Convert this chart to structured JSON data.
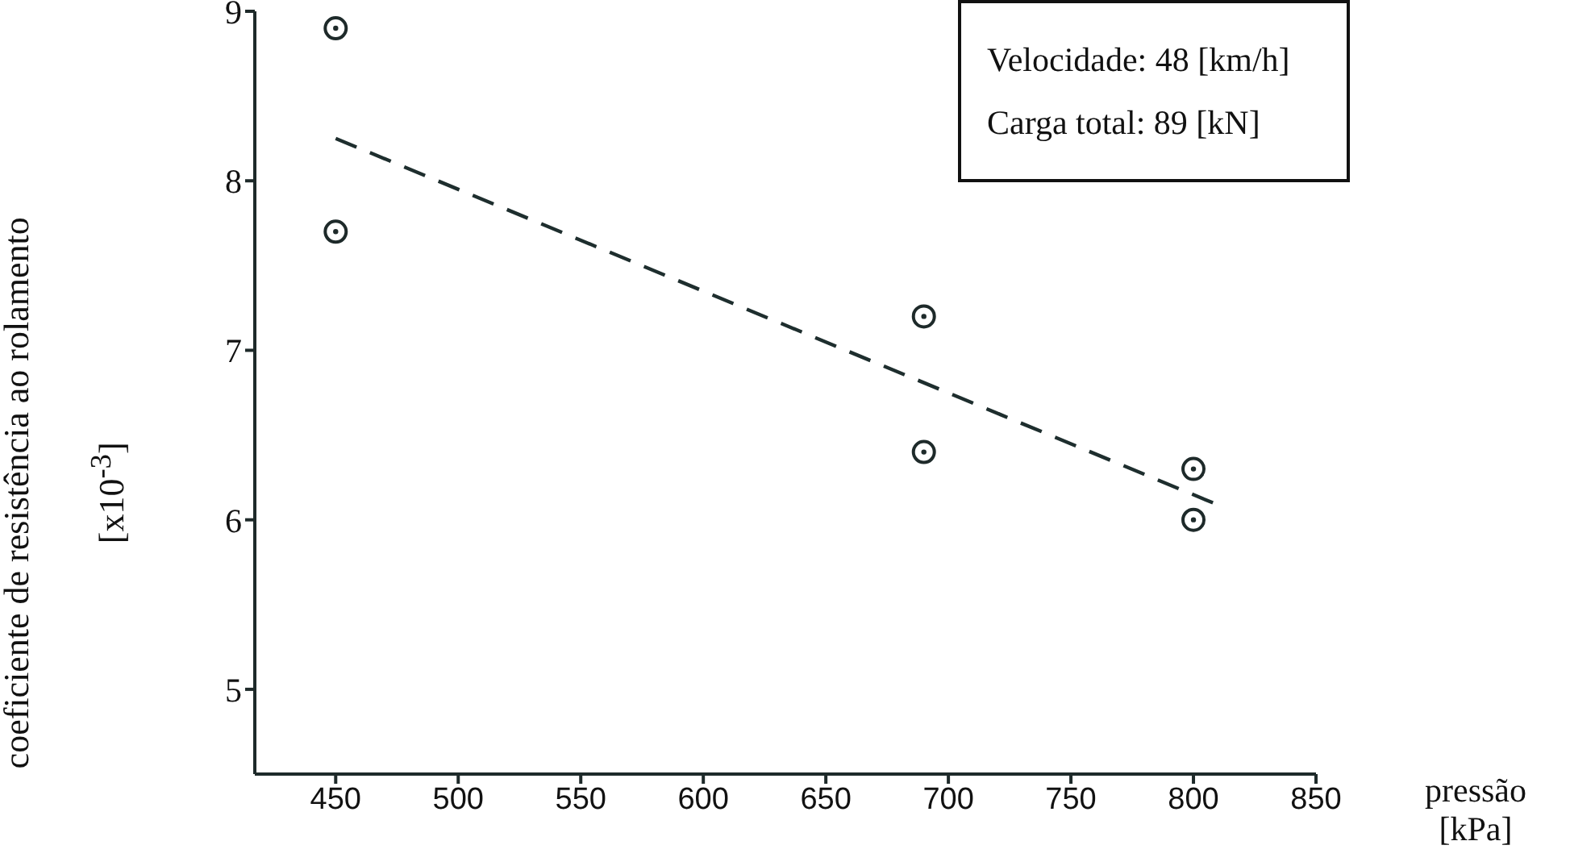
{
  "chart_data": {
    "type": "scatter",
    "xlabel": "pressão [kPa]",
    "ylabel": "coeficiente de resistência ao rolamento [x10$^{-3}$]",
    "xlim": [
      417,
      850
    ],
    "xticks": [
      450,
      500,
      550,
      600,
      650,
      700,
      750,
      800,
      850
    ],
    "ylim": [
      4.5,
      9
    ],
    "yticks": [
      5,
      6,
      7,
      8,
      9
    ],
    "marker": "circle",
    "grid": false,
    "legend": false,
    "annotations": [
      "Velocidade: 48 [km/h]",
      "Carga total: 89 [kN]"
    ],
    "series": [
      {
        "type": "scatter",
        "color": "#1e2a2a",
        "x": [
          800,
          800,
          690,
          690,
          450,
          450
        ],
        "values": [
          6.0,
          6.3,
          6.4,
          7.2,
          7.7,
          8.9
        ]
      },
      {
        "type": "line",
        "color": "#1e2e2e",
        "line_style": "dashed",
        "marker": "none",
        "x": [
          450,
          808
        ],
        "values": [
          8.25,
          6.1
        ]
      }
    ]
  }
}
